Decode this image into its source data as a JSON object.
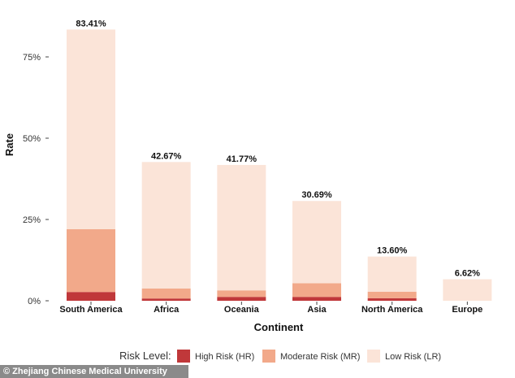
{
  "chart_data": {
    "type": "bar",
    "stacked": true,
    "title": "",
    "xlabel": "Continent",
    "ylabel": "Rate",
    "ylim": [
      0,
      90
    ],
    "yticks": [
      0,
      25,
      50,
      75
    ],
    "ytick_labels": [
      "0%",
      "25%",
      "50%",
      "75%"
    ],
    "categories": [
      "South America",
      "Africa",
      "Oceania",
      "Asia",
      "North America",
      "Europe"
    ],
    "series": [
      {
        "name": "High Risk (HR)",
        "color": "#c0383a",
        "values": [
          2.7,
          0.7,
          1.2,
          1.2,
          0.8,
          0.0
        ]
      },
      {
        "name": "Moderate Risk (MR)",
        "color": "#f2a98a",
        "values": [
          19.3,
          3.1,
          2.0,
          4.2,
          2.0,
          0.0
        ]
      },
      {
        "name": "Low Risk (LR)",
        "color": "#fbe4d8",
        "values": [
          61.41,
          38.87,
          38.57,
          25.29,
          10.8,
          6.62
        ]
      }
    ],
    "totals": [
      83.41,
      42.67,
      41.77,
      30.69,
      13.6,
      6.62
    ],
    "total_labels": [
      "83.41%",
      "42.67%",
      "41.77%",
      "30.69%",
      "13.60%",
      "6.62%"
    ],
    "legend": {
      "title": "Risk Level:",
      "placement": "bottom"
    },
    "grid": false
  },
  "watermark": "© Zhejiang Chinese Medical University"
}
